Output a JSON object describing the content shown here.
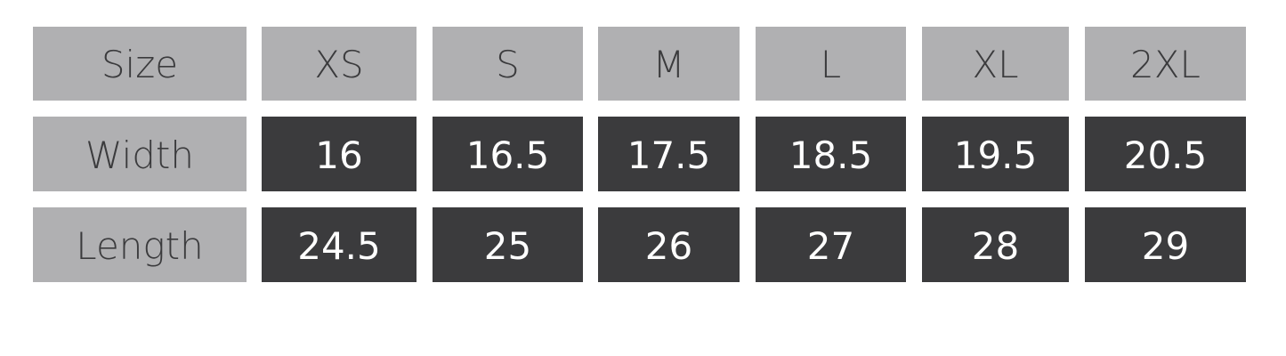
{
  "table": {
    "header": [
      "Size",
      "XS",
      "S",
      "M",
      "L",
      "XL",
      "2XL"
    ],
    "rows": [
      [
        "Width",
        "16",
        "16.5",
        "17.5",
        "18.5",
        "19.5",
        "20.5"
      ],
      [
        "Length",
        "24.5",
        "25",
        "26",
        "27",
        "28",
        "29"
      ]
    ]
  }
}
